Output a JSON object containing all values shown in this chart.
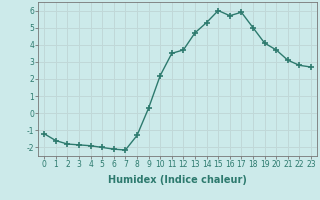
{
  "x": [
    0,
    1,
    2,
    3,
    4,
    5,
    6,
    7,
    8,
    9,
    10,
    11,
    12,
    13,
    14,
    15,
    16,
    17,
    18,
    19,
    20,
    21,
    22,
    23
  ],
  "y": [
    -1.2,
    -1.6,
    -1.8,
    -1.85,
    -1.9,
    -2.0,
    -2.1,
    -2.15,
    -1.3,
    0.3,
    2.2,
    3.5,
    3.7,
    4.7,
    5.3,
    6.0,
    5.7,
    5.9,
    5.0,
    4.1,
    3.7,
    3.1,
    2.8,
    2.7
  ],
  "xlabel": "Humidex (Indice chaleur)",
  "xlim": [
    -0.5,
    23.5
  ],
  "ylim": [
    -2.5,
    6.5
  ],
  "yticks": [
    -2,
    -1,
    0,
    1,
    2,
    3,
    4,
    5,
    6
  ],
  "xticks": [
    0,
    1,
    2,
    3,
    4,
    5,
    6,
    7,
    8,
    9,
    10,
    11,
    12,
    13,
    14,
    15,
    16,
    17,
    18,
    19,
    20,
    21,
    22,
    23
  ],
  "line_color": "#2d7a6e",
  "marker": "+",
  "marker_size": 4,
  "bg_color": "#cceaea",
  "grid_color": "#c0d8d8",
  "line_width": 1.0,
  "tick_fontsize": 5.5,
  "xlabel_fontsize": 7.0
}
